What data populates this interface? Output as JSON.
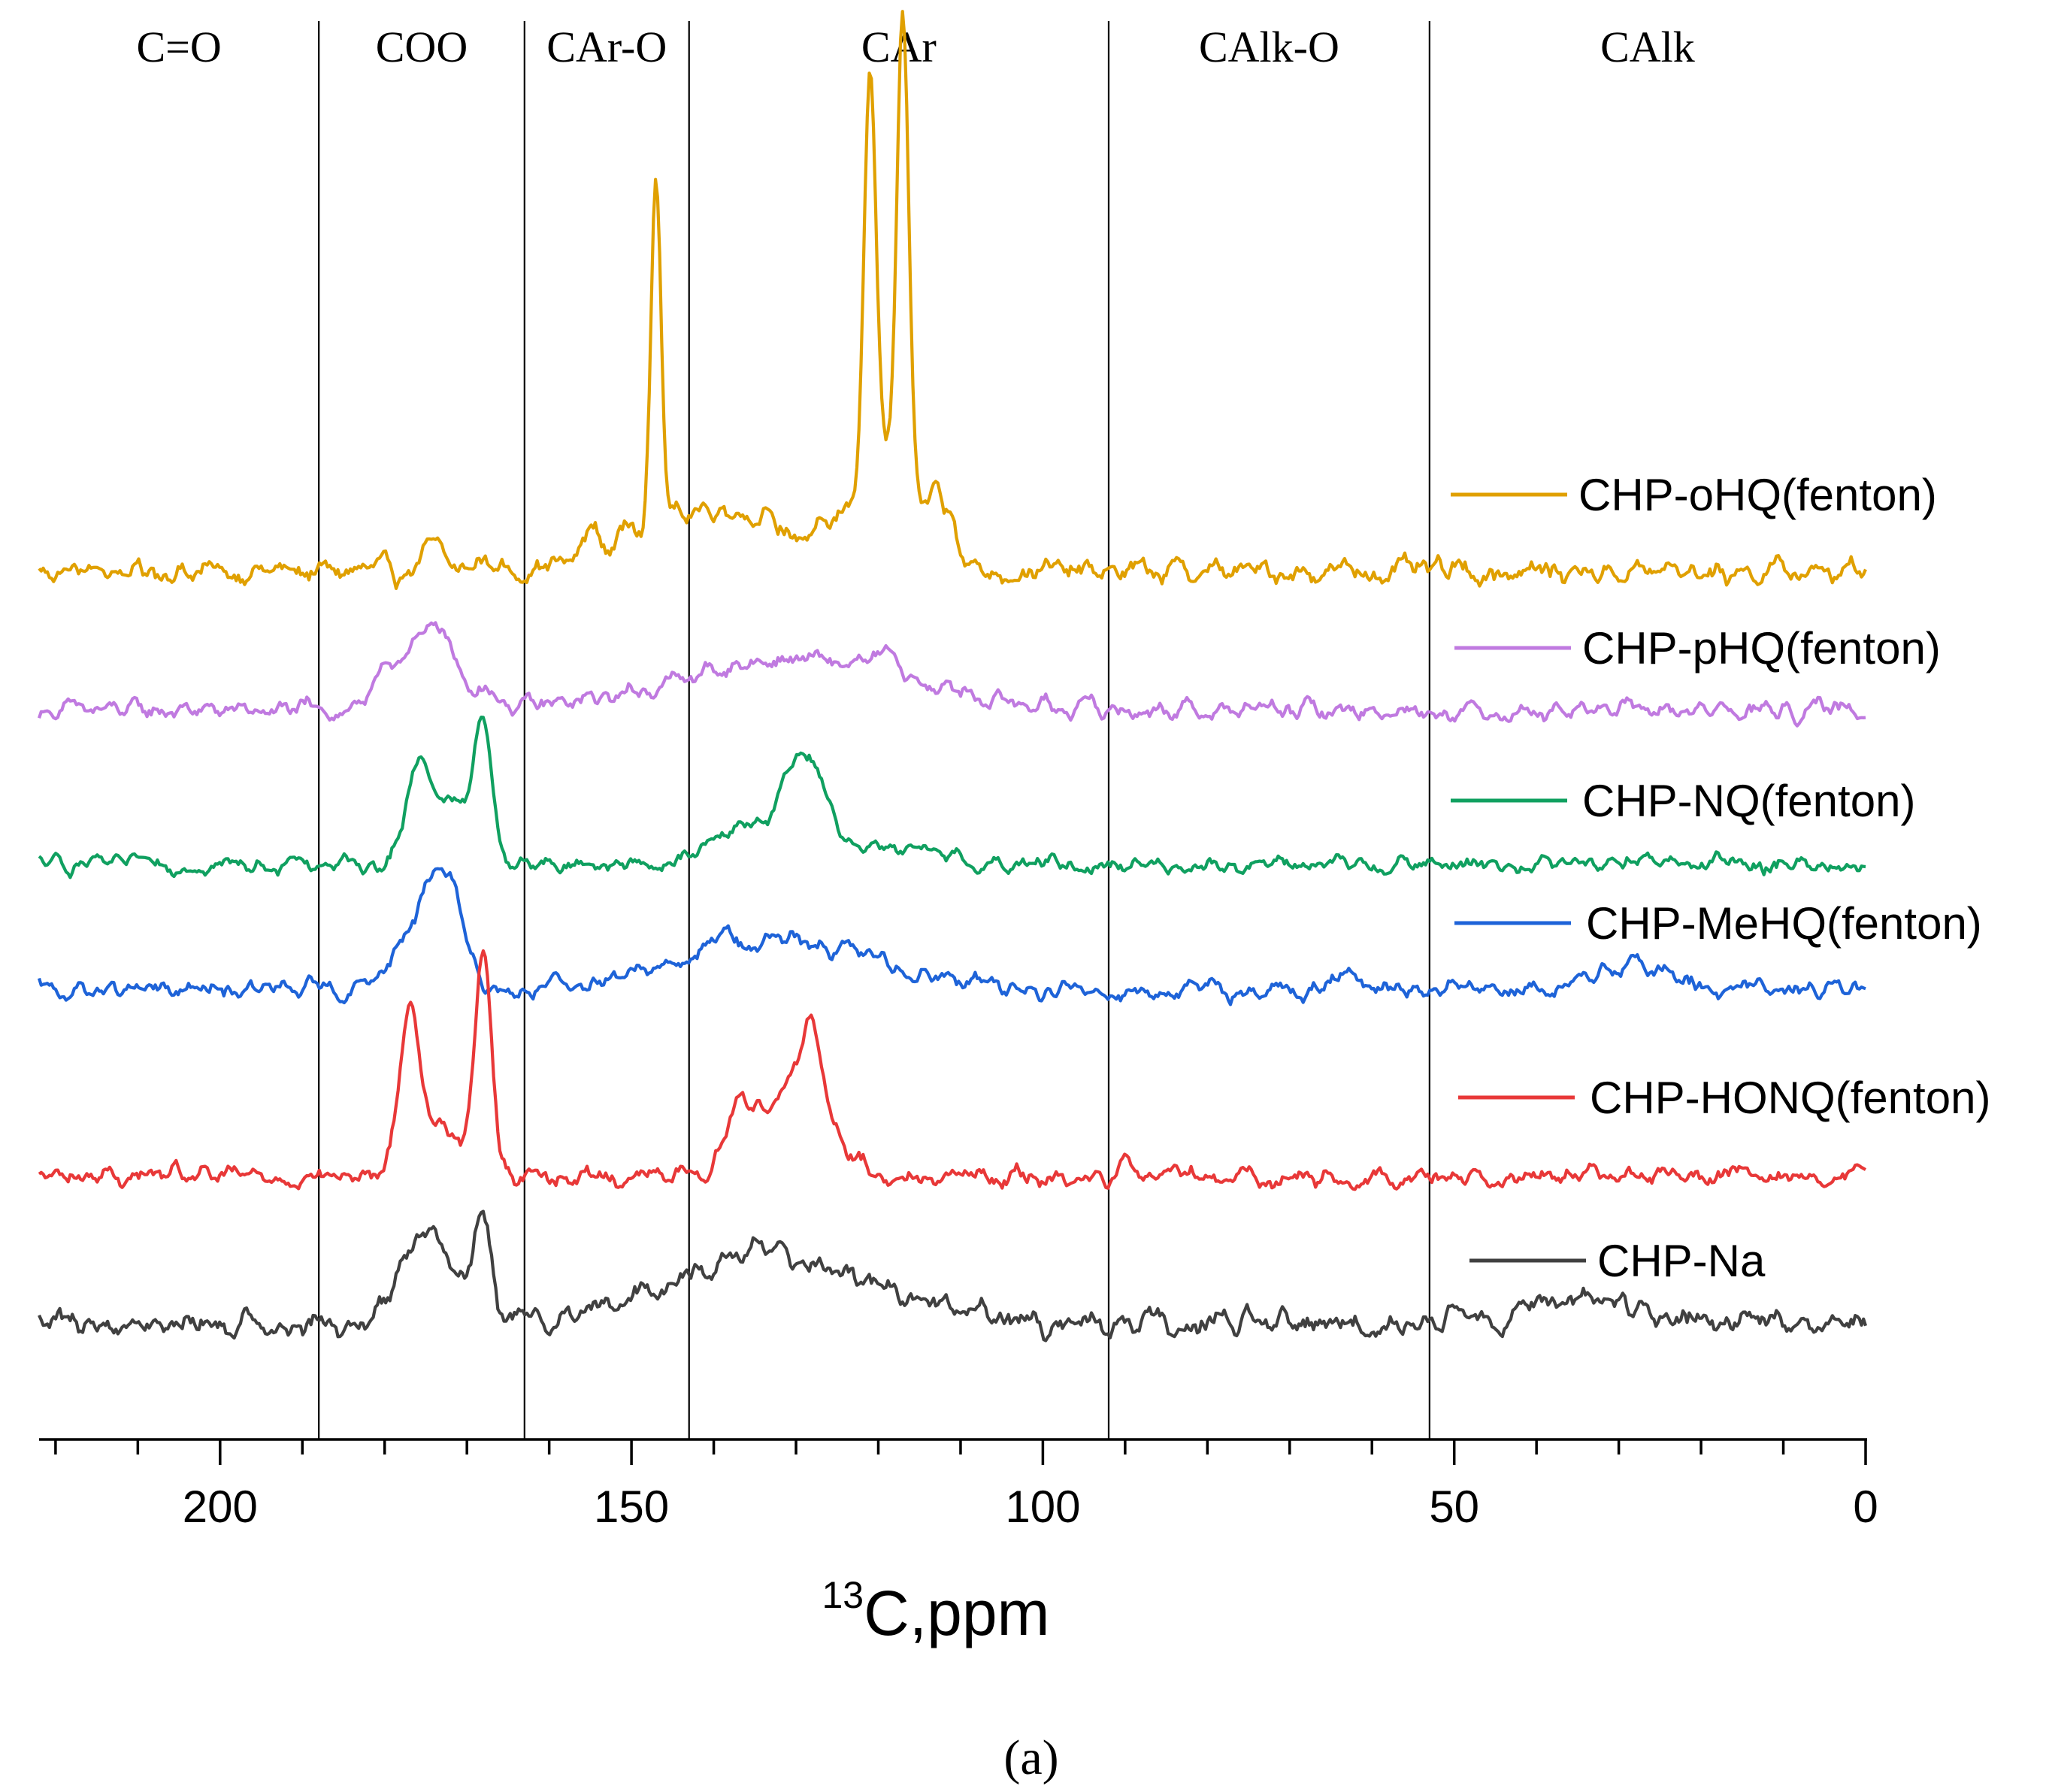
{
  "chart_data": {
    "type": "line",
    "title": "",
    "xlabel": "13C,ppm",
    "xlabel_superscript": "13",
    "xlabel_main": "C,ppm",
    "ylabel": "",
    "xlim": [
      222,
      0
    ],
    "x_reversed": true,
    "x_ticks": [
      200,
      150,
      100,
      50,
      0
    ],
    "x_tick_labels": [
      "200",
      "150",
      "100",
      "50",
      "0"
    ],
    "region_boundaries": [
      188,
      163,
      143,
      92,
      53
    ],
    "regions": [
      {
        "label": "C=O",
        "from": 222,
        "to": 188
      },
      {
        "label": "COO",
        "from": 188,
        "to": 163
      },
      {
        "label": "CAr-O",
        "from": 163,
        "to": 143
      },
      {
        "label": "CAr",
        "from": 143,
        "to": 92
      },
      {
        "label": "CAlk-O",
        "from": 92,
        "to": 53
      },
      {
        "label": "CAlk",
        "from": 53,
        "to": 0
      }
    ],
    "series": [
      {
        "name": "CHP-oHQ(fenton)",
        "color": "#E0A000",
        "offset": 5,
        "baseline": 0.0,
        "noise": 0.055,
        "peaks": [
          [
            174,
            0.12,
            1.2
          ],
          [
            168,
            0.06,
            1.0
          ],
          [
            155,
            0.15,
            0.8
          ],
          [
            150,
            0.12,
            0.7
          ],
          [
            147,
            1.7,
            0.6
          ],
          [
            140,
            0.32,
            9
          ],
          [
            121,
            1.95,
            0.7
          ],
          [
            117,
            2.2,
            0.7
          ],
          [
            119,
            0.55,
            4
          ],
          [
            113,
            0.25,
            0.7
          ],
          [
            111,
            0.25,
            0.7
          ]
        ]
      },
      {
        "name": "CHP-pHQ(fenton)",
        "color": "#C07AE0",
        "offset": 4,
        "baseline": 0.0,
        "noise": 0.045,
        "peaks": [
          [
            177,
            0.3,
            3
          ],
          [
            173,
            0.3,
            1.5
          ],
          [
            168,
            0.12,
            1.5
          ],
          [
            130,
            0.25,
            14
          ],
          [
            119,
            0.1,
            1.2
          ]
        ]
      },
      {
        "name": "CHP-NQ(fenton)",
        "color": "#10A060",
        "offset": 3,
        "baseline": 0.0,
        "noise": 0.04,
        "peaks": [
          [
            176,
            0.38,
            1.5
          ],
          [
            172,
            0.3,
            3
          ],
          [
            168,
            0.62,
            1.0
          ],
          [
            136,
            0.18,
            4
          ],
          [
            129,
            0.48,
            2.5
          ],
          [
            120,
            0.1,
            5
          ]
        ]
      },
      {
        "name": "CHP-MeHQ(fenton)",
        "color": "#1E63D8",
        "offset": 2,
        "baseline": 0.0,
        "noise": 0.045,
        "peaks": [
          [
            176,
            0.3,
            3
          ],
          [
            173,
            0.3,
            2
          ],
          [
            171,
            0.2,
            1.5
          ],
          [
            132,
            0.25,
            12
          ],
          [
            139,
            0.08,
            1
          ],
          [
            28,
            0.12,
            5
          ],
          [
            64,
            0.08,
            1.5
          ]
        ]
      },
      {
        "name": "CHP-HONQ(fenton)",
        "color": "#E83838",
        "offset": 1,
        "baseline": 0.0,
        "noise": 0.045,
        "peaks": [
          [
            177,
            0.75,
            1.2
          ],
          [
            173,
            0.25,
            3
          ],
          [
            168,
            1.05,
            1.0
          ],
          [
            137,
            0.28,
            1.5
          ],
          [
            130,
            0.5,
            4
          ],
          [
            128,
            0.35,
            1.0
          ],
          [
            90,
            0.12,
            0.8
          ]
        ]
      },
      {
        "name": "CHP-Na",
        "color": "#404040",
        "offset": 0,
        "baseline": 0.0,
        "noise": 0.06,
        "peaks": [
          [
            175,
            0.5,
            3
          ],
          [
            168,
            0.5,
            1.0
          ],
          [
            133,
            0.35,
            12
          ],
          [
            35,
            0.12,
            6
          ]
        ]
      }
    ]
  },
  "caption": "(a)"
}
